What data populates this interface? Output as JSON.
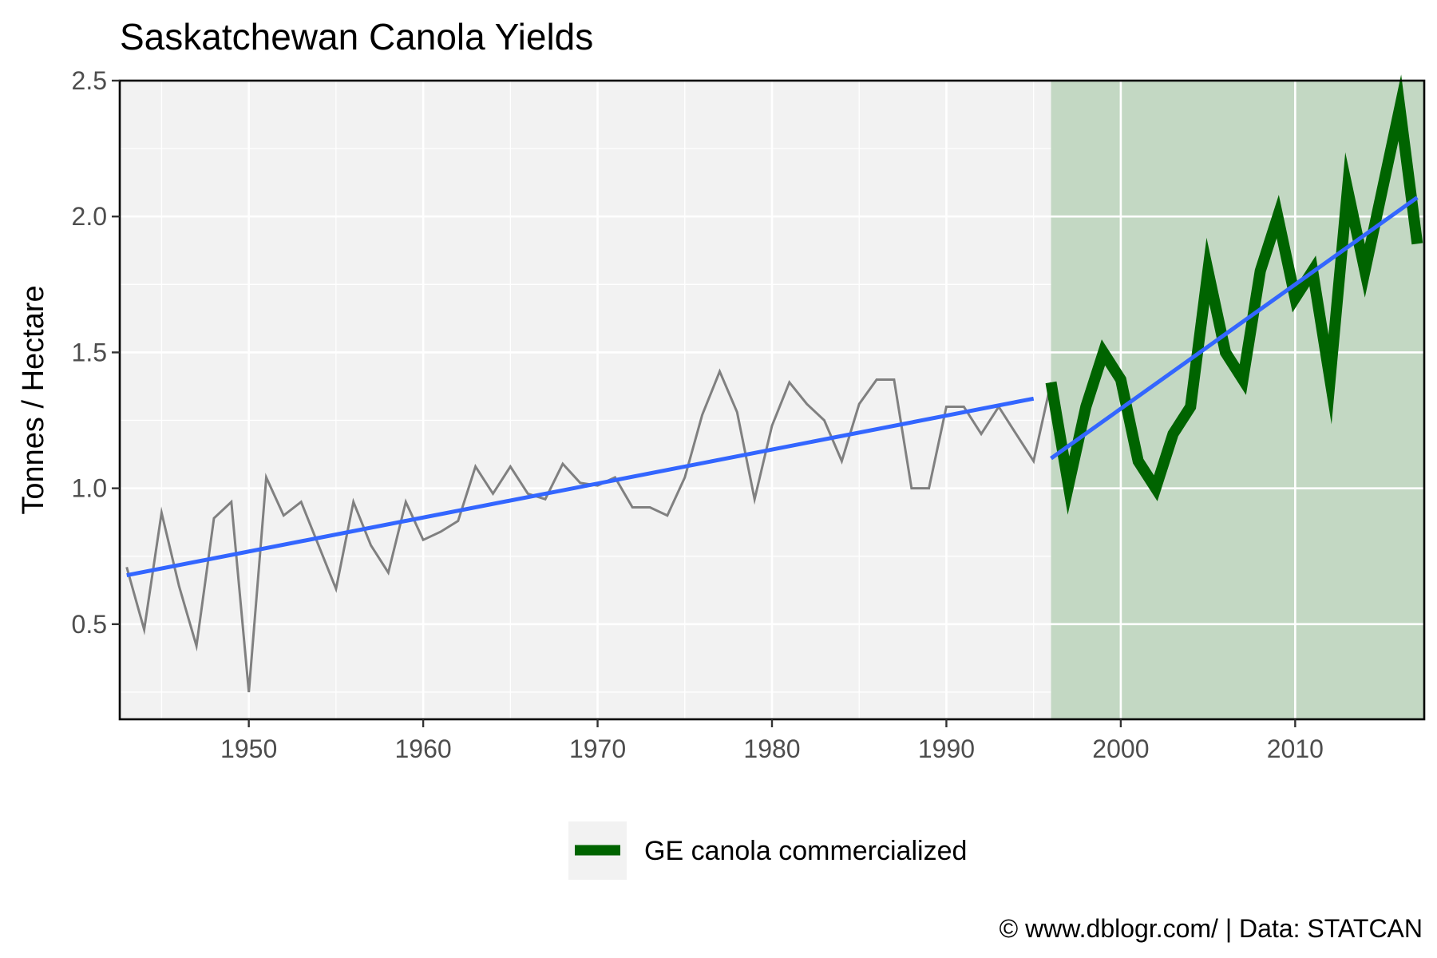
{
  "chart_data": {
    "type": "line",
    "title": "Saskatchewan Canola Yields",
    "xlabel": "",
    "ylabel": "Tonnes / Hectare",
    "xlim": [
      1942.6,
      2017.4
    ],
    "ylim": [
      0.15,
      2.5
    ],
    "x_ticks": [
      1950,
      1960,
      1970,
      1980,
      1990,
      2000,
      2010
    ],
    "y_ticks": [
      0.5,
      1.0,
      1.5,
      2.0,
      2.5
    ],
    "y_tick_labels": [
      "0.5",
      "1.0",
      "1.5",
      "2.0",
      "2.5"
    ],
    "grid": true,
    "legend_position": "bottom",
    "colors": {
      "panel_background": "#f2f2f2",
      "grid": "#ffffff",
      "pre_ge_line": "#808080",
      "ge_line": "#006400",
      "ge_shading": "#c3d8c3",
      "trend": "#3366ff",
      "tick_label": "#4d4d4d"
    },
    "shaded_region": {
      "x_start": 1996,
      "x_end": 2017.4,
      "label": "GE canola commercialized"
    },
    "series": [
      {
        "name": "",
        "style": "thin-grey",
        "x": [
          1943,
          1944,
          1945,
          1946,
          1947,
          1948,
          1949,
          1950,
          1951,
          1952,
          1953,
          1954,
          1955,
          1956,
          1957,
          1958,
          1959,
          1960,
          1961,
          1962,
          1963,
          1964,
          1965,
          1966,
          1967,
          1968,
          1969,
          1970,
          1971,
          1972,
          1973,
          1974,
          1975,
          1976,
          1977,
          1978,
          1979,
          1980,
          1981,
          1982,
          1983,
          1984,
          1985,
          1986,
          1987,
          1988,
          1989,
          1990,
          1991,
          1992,
          1993,
          1994,
          1995,
          1996
        ],
        "values": [
          0.71,
          0.48,
          0.91,
          0.64,
          0.42,
          0.89,
          0.95,
          0.25,
          1.04,
          0.9,
          0.95,
          0.79,
          0.63,
          0.95,
          0.79,
          0.69,
          0.95,
          0.81,
          0.84,
          0.88,
          1.08,
          0.98,
          1.08,
          0.98,
          0.96,
          1.09,
          1.02,
          1.01,
          1.04,
          0.93,
          0.93,
          0.9,
          1.04,
          1.27,
          1.43,
          1.28,
          0.96,
          1.23,
          1.39,
          1.31,
          1.25,
          1.1,
          1.31,
          1.4,
          1.4,
          1.0,
          1.0,
          1.3,
          1.3,
          1.2,
          1.3,
          1.2,
          1.1,
          1.39
        ]
      },
      {
        "name": "GE canola commercialized",
        "style": "thick-green",
        "x": [
          1996,
          1997,
          1998,
          1999,
          2000,
          2001,
          2002,
          2003,
          2004,
          2005,
          2006,
          2007,
          2008,
          2009,
          2010,
          2011,
          2012,
          2013,
          2014,
          2015,
          2016,
          2017
        ],
        "values": [
          1.39,
          1.01,
          1.3,
          1.5,
          1.4,
          1.1,
          1.0,
          1.2,
          1.3,
          1.8,
          1.5,
          1.4,
          1.8,
          2.0,
          1.7,
          1.8,
          1.4,
          2.1,
          1.8,
          2.1,
          2.4,
          1.9
        ]
      }
    ],
    "trend_lines": [
      {
        "x": [
          1943,
          1995
        ],
        "values": [
          0.68,
          1.33
        ]
      },
      {
        "x": [
          1996,
          2017
        ],
        "values": [
          1.11,
          2.07
        ]
      }
    ]
  },
  "caption": "© www.dblogr.com/  |  Data: STATCAN"
}
